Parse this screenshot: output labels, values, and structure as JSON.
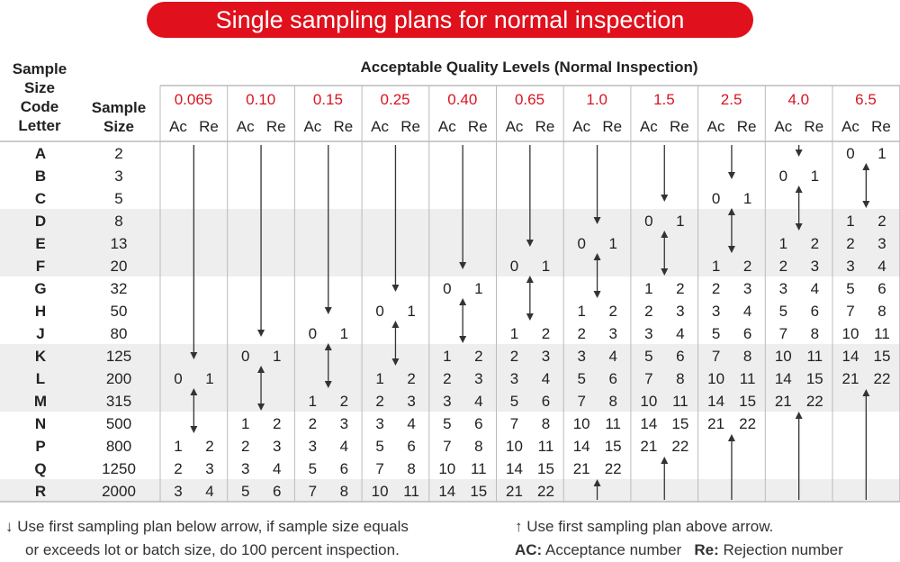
{
  "title": "Single sampling plans for normal inspection",
  "headers": {
    "code_letter_lines": [
      "Sample",
      "Size",
      "Code",
      "Letter"
    ],
    "sample_size_lines": [
      "Sample",
      "Size"
    ],
    "aql_title": "Acceptable Quality Levels (Normal Inspection)",
    "ac": "Ac",
    "re": "Re"
  },
  "aql_levels": [
    "0.065",
    "0.10",
    "0.15",
    "0.25",
    "0.40",
    "0.65",
    "1.0",
    "1.5",
    "2.5",
    "4.0",
    "6.5"
  ],
  "rows": [
    {
      "letter": "A",
      "size": "2"
    },
    {
      "letter": "B",
      "size": "3"
    },
    {
      "letter": "C",
      "size": "5"
    },
    {
      "letter": "D",
      "size": "8"
    },
    {
      "letter": "E",
      "size": "13"
    },
    {
      "letter": "F",
      "size": "20"
    },
    {
      "letter": "G",
      "size": "32"
    },
    {
      "letter": "H",
      "size": "50"
    },
    {
      "letter": "J",
      "size": "80"
    },
    {
      "letter": "K",
      "size": "125"
    },
    {
      "letter": "L",
      "size": "200"
    },
    {
      "letter": "M",
      "size": "315"
    },
    {
      "letter": "N",
      "size": "500"
    },
    {
      "letter": "P",
      "size": "800"
    },
    {
      "letter": "Q",
      "size": "1250"
    },
    {
      "letter": "R",
      "size": "2000"
    }
  ],
  "columns": [
    {
      "aql": "0.065",
      "first_row": 10,
      "down_to": 10,
      "up": false,
      "plans": [
        [
          0,
          1
        ],
        null,
        null,
        [
          1,
          2
        ],
        [
          2,
          3
        ],
        [
          3,
          4
        ]
      ]
    },
    {
      "aql": "0.10",
      "first_row": 9,
      "down_to": 9,
      "up": false,
      "plans": [
        [
          0,
          1
        ],
        null,
        null,
        [
          1,
          2
        ],
        [
          2,
          3
        ],
        [
          3,
          4
        ],
        [
          5,
          6
        ]
      ]
    },
    {
      "aql": "0.15",
      "first_row": 8,
      "down_to": 8,
      "up": false,
      "plans": [
        [
          0,
          1
        ],
        null,
        null,
        [
          1,
          2
        ],
        [
          2,
          3
        ],
        [
          3,
          4
        ],
        [
          5,
          6
        ],
        [
          7,
          8
        ]
      ]
    },
    {
      "aql": "0.25",
      "first_row": 7,
      "down_to": 7,
      "up": false,
      "plans": [
        [
          0,
          1
        ],
        null,
        null,
        [
          1,
          2
        ],
        [
          2,
          3
        ],
        [
          3,
          4
        ],
        [
          5,
          6
        ],
        [
          7,
          8
        ],
        [
          10,
          11
        ]
      ]
    },
    {
      "aql": "0.40",
      "first_row": 6,
      "down_to": 6,
      "up": false,
      "plans": [
        [
          0,
          1
        ],
        null,
        null,
        [
          1,
          2
        ],
        [
          2,
          3
        ],
        [
          3,
          4
        ],
        [
          5,
          6
        ],
        [
          7,
          8
        ],
        [
          10,
          11
        ],
        [
          14,
          15
        ]
      ]
    },
    {
      "aql": "0.65",
      "first_row": 5,
      "down_to": 5,
      "up": false,
      "plans": [
        [
          0,
          1
        ],
        null,
        null,
        [
          1,
          2
        ],
        [
          2,
          3
        ],
        [
          3,
          4
        ],
        [
          5,
          6
        ],
        [
          7,
          8
        ],
        [
          10,
          11
        ],
        [
          14,
          15
        ],
        [
          21,
          22
        ]
      ]
    },
    {
      "aql": "1.0",
      "first_row": 4,
      "down_to": 4,
      "up": true,
      "plans": [
        [
          0,
          1
        ],
        null,
        null,
        [
          1,
          2
        ],
        [
          2,
          3
        ],
        [
          3,
          4
        ],
        [
          5,
          6
        ],
        [
          7,
          8
        ],
        [
          10,
          11
        ],
        [
          14,
          15
        ],
        [
          21,
          22
        ]
      ]
    },
    {
      "aql": "1.5",
      "first_row": 3,
      "down_to": 3,
      "up": true,
      "plans": [
        [
          0,
          1
        ],
        null,
        null,
        [
          1,
          2
        ],
        [
          2,
          3
        ],
        [
          3,
          4
        ],
        [
          5,
          6
        ],
        [
          7,
          8
        ],
        [
          10,
          11
        ],
        [
          14,
          15
        ],
        [
          21,
          22
        ]
      ]
    },
    {
      "aql": "2.5",
      "first_row": 2,
      "down_to": 2,
      "up": true,
      "plans": [
        [
          0,
          1
        ],
        null,
        null,
        [
          1,
          2
        ],
        [
          2,
          3
        ],
        [
          3,
          4
        ],
        [
          5,
          6
        ],
        [
          7,
          8
        ],
        [
          10,
          11
        ],
        [
          14,
          15
        ],
        [
          21,
          22
        ]
      ]
    },
    {
      "aql": "4.0",
      "first_row": 1,
      "down_to": 1,
      "up": true,
      "plans": [
        [
          0,
          1
        ],
        null,
        null,
        [
          1,
          2
        ],
        [
          2,
          3
        ],
        [
          3,
          4
        ],
        [
          5,
          6
        ],
        [
          7,
          8
        ],
        [
          10,
          11
        ],
        [
          14,
          15
        ],
        [
          21,
          22
        ]
      ]
    },
    {
      "aql": "6.5",
      "first_row": 0,
      "down_to": 0,
      "up": true,
      "plans": [
        [
          0,
          1
        ],
        null,
        null,
        [
          1,
          2
        ],
        [
          2,
          3
        ],
        [
          3,
          4
        ],
        [
          5,
          6
        ],
        [
          7,
          8
        ],
        [
          10,
          11
        ],
        [
          14,
          15
        ],
        [
          21,
          22
        ]
      ]
    }
  ],
  "notes": {
    "down_arrow": "Use first sampling plan below arrow, if sample size equals",
    "down_arrow_2": "or exceeds lot or batch size, do 100 percent inspection.",
    "up_arrow": "Use first sampling plan above arrow.",
    "ac_label": "AC:",
    "ac_text": "Acceptance number",
    "re_label": "Re:",
    "re_text": "Rejection number"
  },
  "colors": {
    "accent": "#e0101c",
    "band": "#eeeeee",
    "line": "#bbbbbb",
    "arrow": "#333333"
  }
}
